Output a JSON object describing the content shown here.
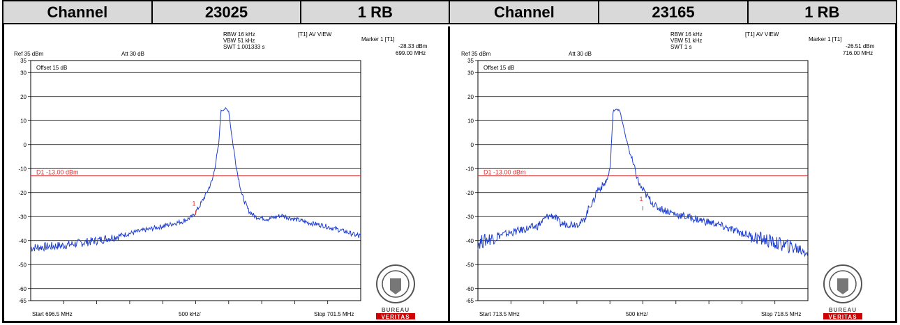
{
  "header": {
    "cells": [
      "Channel",
      "23025",
      "1 RB",
      "Channel",
      "23165",
      "1 RB"
    ]
  },
  "colors": {
    "trace": "#1f3fd0",
    "limit": "#e03030",
    "grid": "#000000"
  },
  "chart_data": [
    {
      "type": "line",
      "rbw": "RBW 16 kHz",
      "vbw": "VBW 51 kHz",
      "swt": "SWT 1.001333 s",
      "view": "[T1] AV VIEW",
      "marker_label": "Marker 1 [T1]",
      "marker_value": "-28.33 dBm",
      "marker_freq": "699.00 MHz",
      "ref": "Ref 35 dBm",
      "att": "Att 30 dB",
      "offset": "Offset 15 dB",
      "limit_label": "D1 -13.00 dBm",
      "limit_value": -13,
      "start_label": "Start 696.5 MHz",
      "center_label": "500 kHz/",
      "stop_label": "Stop 701.5 MHz",
      "xlim": [
        696.5,
        701.5
      ],
      "ylim": [
        -65,
        35
      ],
      "yticks": [
        35,
        30,
        20,
        10,
        0,
        -10,
        -20,
        -30,
        -40,
        -50,
        -60,
        -65
      ],
      "ytick_labels": [
        "35",
        "30",
        "20",
        "10",
        "0",
        "-10",
        "-20",
        "-30",
        "-40",
        "-50",
        "-60",
        "-65"
      ],
      "marker": {
        "x": 699.0,
        "y": -28.33,
        "label": "1"
      },
      "x": [
        696.5,
        697.0,
        697.5,
        698.0,
        698.5,
        698.8,
        698.95,
        699.05,
        699.15,
        699.25,
        699.3,
        699.35,
        699.38,
        699.45,
        699.5,
        699.55,
        699.62,
        699.7,
        699.8,
        699.9,
        700.1,
        700.3,
        700.5,
        700.7,
        700.9,
        701.1,
        701.3,
        701.5
      ],
      "y": [
        -43,
        -42,
        -40,
        -37,
        -34,
        -32,
        -30,
        -26,
        -21,
        -15,
        -8,
        0,
        14,
        15,
        14,
        3,
        -10,
        -21,
        -27.5,
        -30,
        -31,
        -29.5,
        -31,
        -32.5,
        -33.5,
        -35,
        -36.5,
        -38.5
      ],
      "noise": 1.0
    },
    {
      "type": "line",
      "rbw": "RBW 16 kHz",
      "vbw": "VBW 51 kHz",
      "swt": "SWT 1 s",
      "view": "[T1] AV VIEW",
      "marker_label": "Marker 1 [T1]",
      "marker_value": "-26.51 dBm",
      "marker_freq": "716.00 MHz",
      "ref": "Ref 35 dBm",
      "att": "Att 30 dB",
      "offset": "Offset 15 dB",
      "limit_label": "D1 -13.00 dBm",
      "limit_value": -13,
      "start_label": "Start 713.5 MHz",
      "center_label": "500 kHz/",
      "stop_label": "Stop 718.5 MHz",
      "xlim": [
        713.5,
        718.5
      ],
      "ylim": [
        -65,
        35
      ],
      "yticks": [
        35,
        30,
        20,
        10,
        0,
        -10,
        -20,
        -30,
        -40,
        -50,
        -60,
        -65
      ],
      "ytick_labels": [
        "35",
        "30",
        "20",
        "10",
        "0",
        "-10",
        "-20",
        "-30",
        "-40",
        "-50",
        "-60",
        "-65"
      ],
      "marker": {
        "x": 716.0,
        "y": -26.51,
        "label": "1"
      },
      "x": [
        713.5,
        713.8,
        714.1,
        714.4,
        714.55,
        714.65,
        714.75,
        714.85,
        715.0,
        715.1,
        715.2,
        715.25,
        715.3,
        715.4,
        715.45,
        715.5,
        715.55,
        715.6,
        715.65,
        715.75,
        715.85,
        715.95,
        716.05,
        716.2,
        716.5,
        716.8,
        717.1,
        717.4,
        717.7,
        718.0,
        718.3,
        718.5
      ],
      "y": [
        -41,
        -38,
        -36,
        -34,
        -30,
        -29.5,
        -33,
        -33,
        -33,
        -32,
        -25,
        -24,
        -19,
        -17,
        -15,
        -11,
        14,
        15,
        14,
        2,
        -8,
        -17,
        -21,
        -26,
        -29,
        -31,
        -33,
        -36,
        -38.5,
        -41,
        -43,
        -44.5
      ],
      "noise": 1.6
    }
  ]
}
